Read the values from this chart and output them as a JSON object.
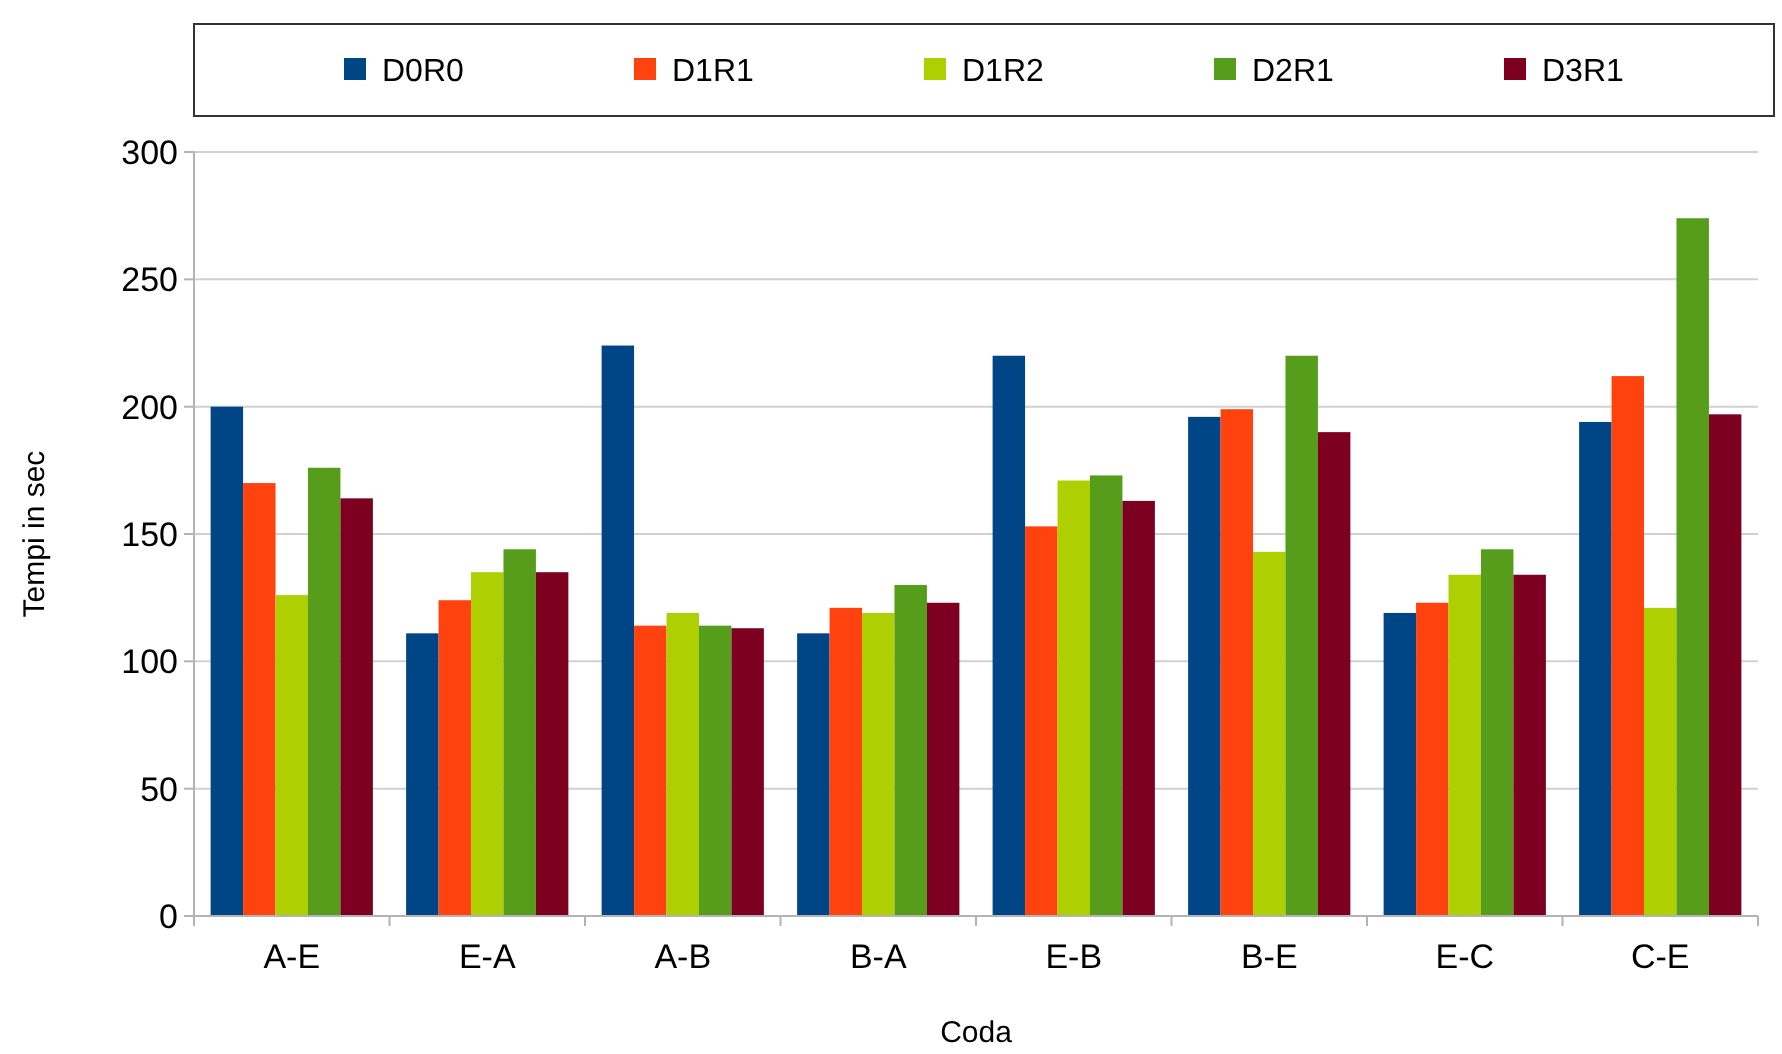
{
  "chart_data": {
    "type": "bar",
    "xlabel": "Coda",
    "ylabel": "Tempi in sec",
    "categories": [
      "A-E",
      "E-A",
      "A-B",
      "B-A",
      "E-B",
      "B-E",
      "E-C",
      "C-E"
    ],
    "series": [
      {
        "name": "D0R0",
        "color": "#004586",
        "values": [
          200,
          111,
          224,
          111,
          220,
          196,
          119,
          194
        ]
      },
      {
        "name": "D1R1",
        "color": "#ff420e",
        "values": [
          170,
          124,
          114,
          121,
          153,
          199,
          123,
          212
        ]
      },
      {
        "name": "D1R2",
        "color": "#aecf00",
        "values": [
          126,
          135,
          119,
          119,
          171,
          143,
          134,
          121
        ]
      },
      {
        "name": "D2R1",
        "color": "#579d1c",
        "values": [
          176,
          144,
          114,
          130,
          173,
          220,
          144,
          274
        ]
      },
      {
        "name": "D3R1",
        "color": "#7e0021",
        "values": [
          164,
          135,
          113,
          123,
          163,
          190,
          134,
          197
        ]
      }
    ],
    "ylim": [
      0,
      300
    ],
    "yticks": [
      0,
      50,
      100,
      150,
      200,
      250,
      300
    ],
    "grid": "y",
    "legend": "top"
  }
}
